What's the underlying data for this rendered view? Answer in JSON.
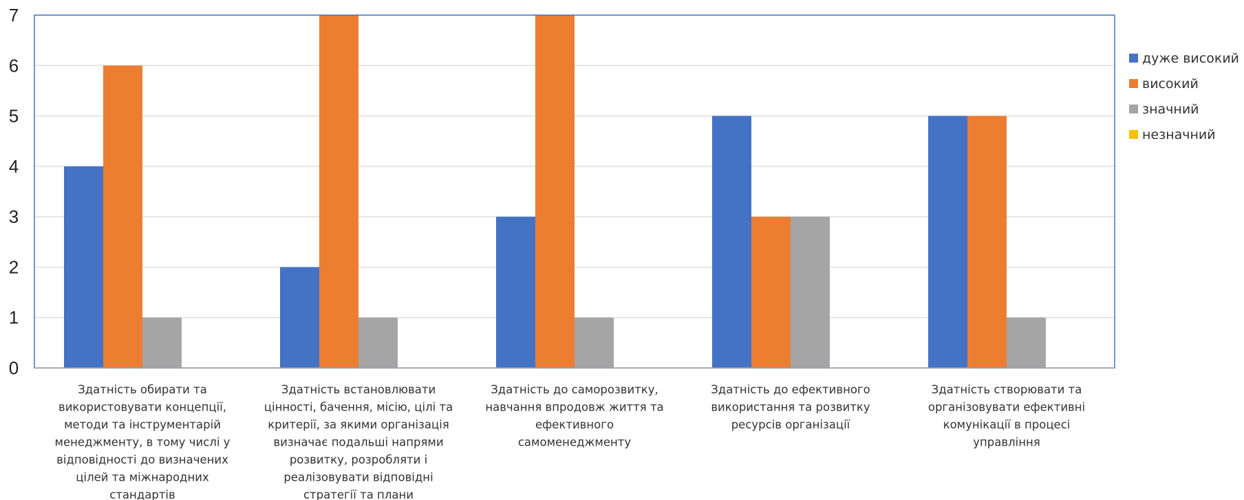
{
  "chart_data": {
    "type": "bar",
    "title": "",
    "xlabel": "",
    "ylabel": "",
    "ylim": [
      0,
      7
    ],
    "yticks": [
      0,
      1,
      2,
      3,
      4,
      5,
      6,
      7
    ],
    "grid": true,
    "legend_position": "right",
    "categories": [
      "Здатність обирати та використовувати концепції, методи та інструментарій менеджменту, в тому числі у відповідності до визначених цілей та міжнародних стандартів",
      "Здатність встановлювати цінності, бачення, місію, цілі та критерії, за якими організація визначає подальші напрями розвитку, розробляти і реалізовувати відповідні стратегії та плани",
      "Здатність до саморозвитку, навчання впродовж життя та ефективного самоменеджменту",
      "Здатність до ефективного використання та розвитку ресурсів організації",
      "Здатність створювати та організовувати ефективні комунікації в процесі управління"
    ],
    "category_label_lines": [
      [
        "Здатність обирати та",
        "використовувати концепції,",
        "методи та інструментарій",
        "менеджменту, в тому числі у",
        "відповідності до визначених",
        "цілей та міжнародних",
        "стандартів"
      ],
      [
        "Здатність встановлювати",
        "цінності, бачення, місію, цілі та",
        "критерії, за якими організація",
        "визначає подальші напрями",
        "розвитку, розробляти і",
        "реалізовувати відповідні",
        "стратегії та плани"
      ],
      [
        "Здатність до саморозвитку,",
        "навчання впродовж життя та",
        "ефективного",
        "самоменеджменту"
      ],
      [
        "Здатність до ефективного",
        "використання та розвитку",
        "ресурсів організації"
      ],
      [
        "Здатність створювати та",
        "організовувати ефективні",
        "комунікації в процесі",
        "управління"
      ]
    ],
    "series": [
      {
        "name": "дуже високий",
        "color": "#4472C4",
        "values": [
          4,
          2,
          3,
          5,
          5
        ]
      },
      {
        "name": "високий",
        "color": "#ED7D31",
        "values": [
          6,
          7,
          7,
          3,
          5
        ]
      },
      {
        "name": "значний",
        "color": "#A5A5A5",
        "values": [
          1,
          1,
          1,
          3,
          1
        ]
      },
      {
        "name": "незначний",
        "color": "#FFC000",
        "values": [
          0,
          0,
          0,
          0,
          0
        ]
      }
    ],
    "colors": {
      "gridline": "#D9D9D9",
      "plot_border": "#4472C4",
      "axis_line": "#A6A6A6"
    }
  }
}
